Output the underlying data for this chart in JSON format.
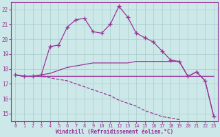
{
  "xlabel": "Windchill (Refroidissement éolien,°C)",
  "background_color": "#cce8e8",
  "grid_color": "#aacccc",
  "line_color": "#993399",
  "ylim": [
    14.5,
    22.5
  ],
  "xlim": [
    -0.5,
    23.5
  ],
  "yticks": [
    15,
    16,
    17,
    18,
    19,
    20,
    21,
    22
  ],
  "xticks": [
    0,
    1,
    2,
    3,
    4,
    5,
    6,
    7,
    8,
    9,
    10,
    11,
    12,
    13,
    14,
    15,
    16,
    17,
    18,
    19,
    20,
    21,
    22,
    23
  ],
  "series": [
    {
      "x": [
        0,
        1,
        2,
        3,
        4,
        5,
        6,
        7,
        8,
        9,
        10,
        11,
        12,
        13,
        14,
        15,
        16,
        17,
        18,
        19,
        20,
        21,
        22,
        23
      ],
      "y": [
        17.6,
        17.5,
        17.5,
        17.5,
        17.5,
        17.5,
        17.5,
        17.5,
        17.5,
        17.5,
        17.5,
        17.5,
        17.5,
        17.5,
        17.5,
        17.5,
        17.5,
        17.5,
        17.5,
        17.5,
        17.5,
        17.5,
        17.5,
        17.5
      ],
      "marker": null,
      "linestyle": "-",
      "lw": 1.0
    },
    {
      "x": [
        0,
        1,
        2,
        3,
        4,
        5,
        6,
        7,
        8,
        9,
        10,
        11,
        12,
        13,
        14,
        15,
        16,
        17,
        18,
        19,
        20,
        21,
        22,
        23
      ],
      "y": [
        17.6,
        17.5,
        17.5,
        17.6,
        19.5,
        19.6,
        20.8,
        21.3,
        21.4,
        20.5,
        20.4,
        21.0,
        22.2,
        21.5,
        20.4,
        20.1,
        19.8,
        19.2,
        18.6,
        18.5,
        17.5,
        17.8,
        17.2,
        14.8
      ],
      "marker": "+",
      "linestyle": "-",
      "lw": 0.9
    },
    {
      "x": [
        0,
        1,
        2,
        3,
        4,
        5,
        6,
        7,
        8,
        9,
        10,
        11,
        12,
        13,
        14,
        15,
        16,
        17,
        18,
        19,
        20,
        21,
        22,
        23
      ],
      "y": [
        17.6,
        17.5,
        17.5,
        17.6,
        17.7,
        17.9,
        18.1,
        18.2,
        18.3,
        18.4,
        18.4,
        18.4,
        18.4,
        18.4,
        18.5,
        18.5,
        18.5,
        18.5,
        18.5,
        18.5,
        17.5,
        17.8,
        17.2,
        14.8
      ],
      "marker": null,
      "linestyle": "-",
      "lw": 0.9
    },
    {
      "x": [
        0,
        1,
        2,
        3,
        4,
        5,
        6,
        7,
        8,
        9,
        10,
        11,
        12,
        13,
        14,
        15,
        16,
        17,
        18,
        19,
        20,
        21,
        22,
        23
      ],
      "y": [
        17.6,
        17.5,
        17.5,
        17.5,
        17.4,
        17.3,
        17.2,
        17.0,
        16.8,
        16.6,
        16.4,
        16.2,
        15.9,
        15.7,
        15.5,
        15.2,
        15.0,
        14.8,
        14.7,
        14.6,
        null,
        null,
        null,
        null
      ],
      "marker": null,
      "linestyle": "--",
      "lw": 0.9
    }
  ]
}
